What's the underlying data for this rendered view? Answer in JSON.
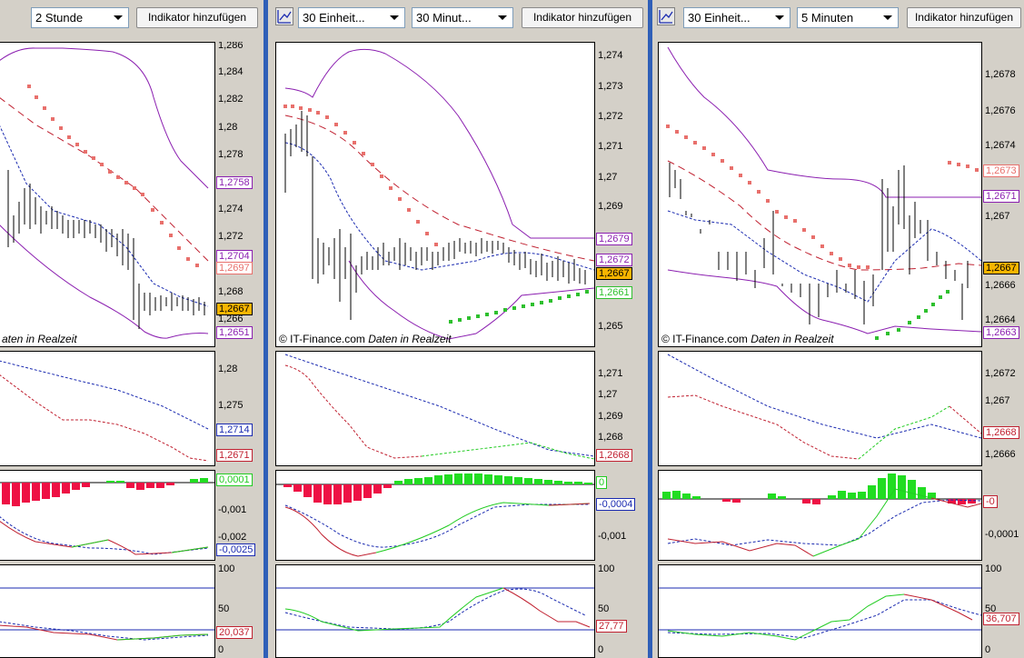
{
  "colors": {
    "background": "#d4d0c8",
    "separator": "#2f5fb8",
    "bollinger": "#8b1fb0",
    "parabolic_sar_down": "#e8706c",
    "parabolic_sar_up": "#2ec02e",
    "sma_dashed_red": "#c02030",
    "sma_dashed_blue": "#1a2ab0",
    "current_price_badge": "#f7b500",
    "histogram_positive": "#22dd22",
    "histogram_negative": "#ee1144",
    "stochastic_k": "#22cc22",
    "stochastic_d": "#1a2ab0"
  },
  "panes": [
    {
      "toolbar": {
        "units_label": "",
        "interval_label": "2 Stunde",
        "add_indicator_label": "Indikator hinzufügen"
      },
      "credit": {
        "brand": "",
        "realtime": "aten in Realzeit"
      },
      "price_axis": [
        "1,286",
        "1,284",
        "1,282",
        "1,28",
        "1,278",
        "1,274",
        "1,272",
        "1,268",
        "1,266"
      ],
      "price_badges": [
        "1,2758",
        "1,2704",
        "1,2697",
        "1,2667",
        "1,2651"
      ],
      "ma_axis": [
        "1,28",
        "1,275"
      ],
      "ma_badges": [
        "1,2714",
        "1,2671"
      ],
      "macd_axis": [
        "-0,001",
        "-0,002"
      ],
      "macd_badges": [
        "0,0001",
        "-0,0025"
      ],
      "stoch_axis": [
        "100",
        "50",
        "0"
      ],
      "stoch_badges": [
        "20,037"
      ]
    },
    {
      "toolbar": {
        "units_label": "30 Einheit...",
        "interval_label": "30 Minut...",
        "add_indicator_label": "Indikator hinzufügen"
      },
      "credit": {
        "brand": "© IT-Finance.com",
        "realtime": "Daten in Realzeit"
      },
      "price_axis": [
        "1,274",
        "1,273",
        "1,272",
        "1,271",
        "1,27",
        "1,269",
        "1,265"
      ],
      "price_badges": [
        "1,2679",
        "1,2672",
        "1,2667",
        "1,2661"
      ],
      "ma_axis": [
        "1,271",
        "1,27",
        "1,269",
        "1,268"
      ],
      "ma_badges": [
        "1,2668"
      ],
      "macd_axis": [
        "-0,001"
      ],
      "macd_badges": [
        "0",
        "-0,0004"
      ],
      "stoch_axis": [
        "100",
        "50",
        "0"
      ],
      "stoch_badges": [
        "27,77"
      ]
    },
    {
      "toolbar": {
        "units_label": "30 Einheit...",
        "interval_label": "5 Minuten",
        "add_indicator_label": "Indikator hinzufügen"
      },
      "credit": {
        "brand": "© IT-Finance.com",
        "realtime": "Daten in Realzeit"
      },
      "price_axis": [
        "1,2678",
        "1,2676",
        "1,2674",
        "1,267",
        "1,2666",
        "1,2664"
      ],
      "price_badges": [
        "1,2673",
        "1,2671",
        "1,2667",
        "1,2663"
      ],
      "ma_axis": [
        "1,2672",
        "1,267",
        "1,2666"
      ],
      "ma_badges": [
        "1,2668"
      ],
      "macd_axis": [
        "-0,0001"
      ],
      "macd_badges": [
        "-0"
      ],
      "stoch_axis": [
        "100",
        "50",
        "0"
      ],
      "stoch_badges": [
        "36,707"
      ]
    }
  ]
}
